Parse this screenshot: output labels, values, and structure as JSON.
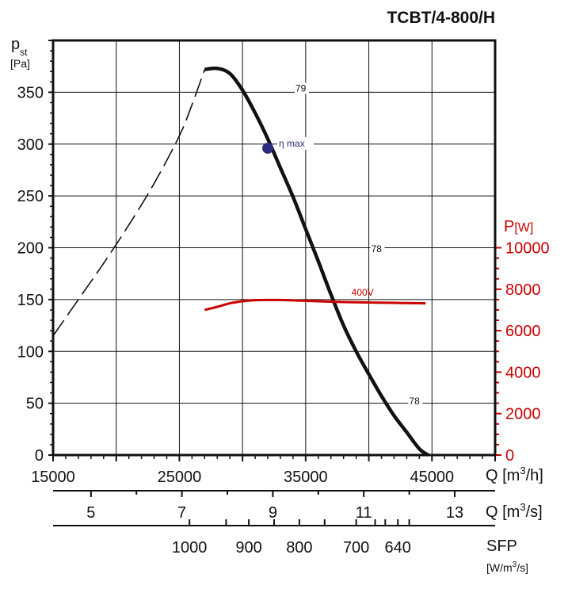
{
  "chart_data": {
    "type": "line",
    "title": "TCBT/4-800/H",
    "ylabel": "p",
    "ylabel_sub": "st",
    "yunit": "[Pa]",
    "ylim": [
      0,
      350
    ],
    "yticks": [
      0,
      50,
      100,
      150,
      200,
      250,
      300,
      350
    ],
    "grid": true,
    "x_axes": [
      {
        "label": "Q [m",
        "label_sup": "3",
        "label_end": "/h]",
        "xlim": [
          15000,
          50000
        ],
        "ticks": [
          15000,
          25000,
          35000,
          45000
        ]
      },
      {
        "label": "Q [m",
        "label_sup": "3",
        "label_end": "/s]",
        "ticks": [
          5,
          7,
          9,
          11,
          13
        ]
      },
      {
        "label": "SFP",
        "unit": "[W/m",
        "unit_sup": "3",
        "unit_end": "/s]",
        "ticks": [
          1000,
          900,
          800,
          700,
          640
        ]
      }
    ],
    "secondary_y": {
      "label": "P",
      "unit": "[W]",
      "ylim": [
        0,
        10000
      ],
      "ticks": [
        0,
        2000,
        4000,
        6000,
        8000,
        10000
      ],
      "color": "#cc0000"
    },
    "series": [
      {
        "name": "pst",
        "style": "solid-thick",
        "color": "#111111",
        "x": [
          27000,
          28000,
          29000,
          30000,
          31000,
          32000,
          33000,
          34000,
          35000,
          36000,
          37000,
          38000,
          39000,
          40000,
          41000,
          42000,
          43000,
          44000,
          44700
        ],
        "y": [
          372,
          373,
          368,
          352,
          330,
          305,
          277,
          249,
          218,
          187,
          155,
          125,
          100,
          78,
          57,
          38,
          22,
          6,
          0
        ]
      },
      {
        "name": "pst-unstable",
        "style": "dashed",
        "color": "#111111",
        "x": [
          15000,
          17000,
          19000,
          21000,
          23000,
          25000,
          26000,
          27000
        ],
        "y": [
          115,
          150,
          185,
          222,
          262,
          308,
          338,
          372
        ]
      },
      {
        "name": "400V",
        "axis": "secondary",
        "color": "#cc0000",
        "x": [
          27000,
          28000,
          29000,
          30000,
          31000,
          32000,
          33000,
          34000,
          36000,
          38000,
          40000,
          42000,
          44500
        ],
        "y": [
          7000,
          7150,
          7320,
          7420,
          7470,
          7480,
          7480,
          7460,
          7420,
          7380,
          7360,
          7340,
          7320
        ]
      }
    ],
    "annotations": [
      {
        "text": "79",
        "x": 34000,
        "y": 350
      },
      {
        "text": "η max",
        "x": 32000,
        "y": 296,
        "marker": true,
        "marker_color": "#2d2d7e"
      },
      {
        "text": "78",
        "x": 40000,
        "y": 195
      },
      {
        "text": "78",
        "x": 43000,
        "y": 48
      }
    ]
  }
}
